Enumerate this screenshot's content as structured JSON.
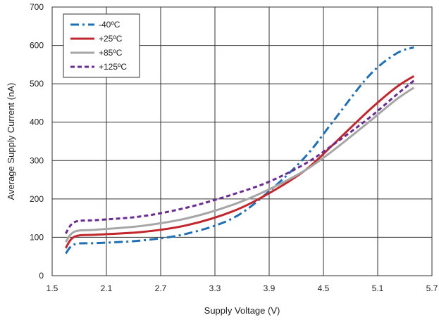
{
  "chart_data": {
    "type": "line",
    "title": "",
    "xlabel": "Supply Voltage (V)",
    "ylabel": "Average Supply Current (nA)",
    "xlim": [
      1.5,
      5.7
    ],
    "ylim": [
      0,
      700
    ],
    "x_ticks": [
      "1.5",
      "2.1",
      "2.7",
      "3.3",
      "3.9",
      "4.5",
      "5.1",
      "5.7"
    ],
    "y_ticks": [
      "0",
      "100",
      "200",
      "300",
      "400",
      "500",
      "600",
      "700"
    ],
    "grid": true,
    "legend_position": "top-left",
    "series": [
      {
        "name": "-40ºC",
        "color": "#1f6fb5",
        "dash": "dashdot",
        "x": [
          1.65,
          1.75,
          2.0,
          2.5,
          3.0,
          3.5,
          3.9,
          4.3,
          4.6,
          5.0,
          5.3,
          5.5
        ],
        "y": [
          58,
          82,
          85,
          92,
          110,
          150,
          220,
          310,
          400,
          520,
          578,
          595
        ]
      },
      {
        "name": "+25ºC",
        "color": "#c1272d",
        "dash": "solid",
        "x": [
          1.65,
          1.75,
          2.0,
          2.5,
          3.0,
          3.5,
          3.9,
          4.3,
          4.6,
          5.0,
          5.3,
          5.5
        ],
        "y": [
          72,
          102,
          107,
          114,
          132,
          168,
          215,
          275,
          340,
          430,
          490,
          520
        ]
      },
      {
        "name": "+85ºC",
        "color": "#a6a6a6",
        "dash": "solid",
        "x": [
          1.65,
          1.75,
          2.0,
          2.5,
          3.0,
          3.5,
          3.9,
          4.3,
          4.6,
          5.0,
          5.3,
          5.5
        ],
        "y": [
          88,
          115,
          120,
          130,
          150,
          185,
          225,
          275,
          325,
          400,
          458,
          490
        ]
      },
      {
        "name": "+125ºC",
        "color": "#6a2c91",
        "dash": "dash",
        "x": [
          1.65,
          1.75,
          2.0,
          2.5,
          3.0,
          3.5,
          3.9,
          4.3,
          4.6,
          5.0,
          5.3,
          5.5
        ],
        "y": [
          110,
          140,
          145,
          155,
          178,
          212,
          245,
          292,
          340,
          410,
          470,
          508
        ]
      }
    ]
  }
}
